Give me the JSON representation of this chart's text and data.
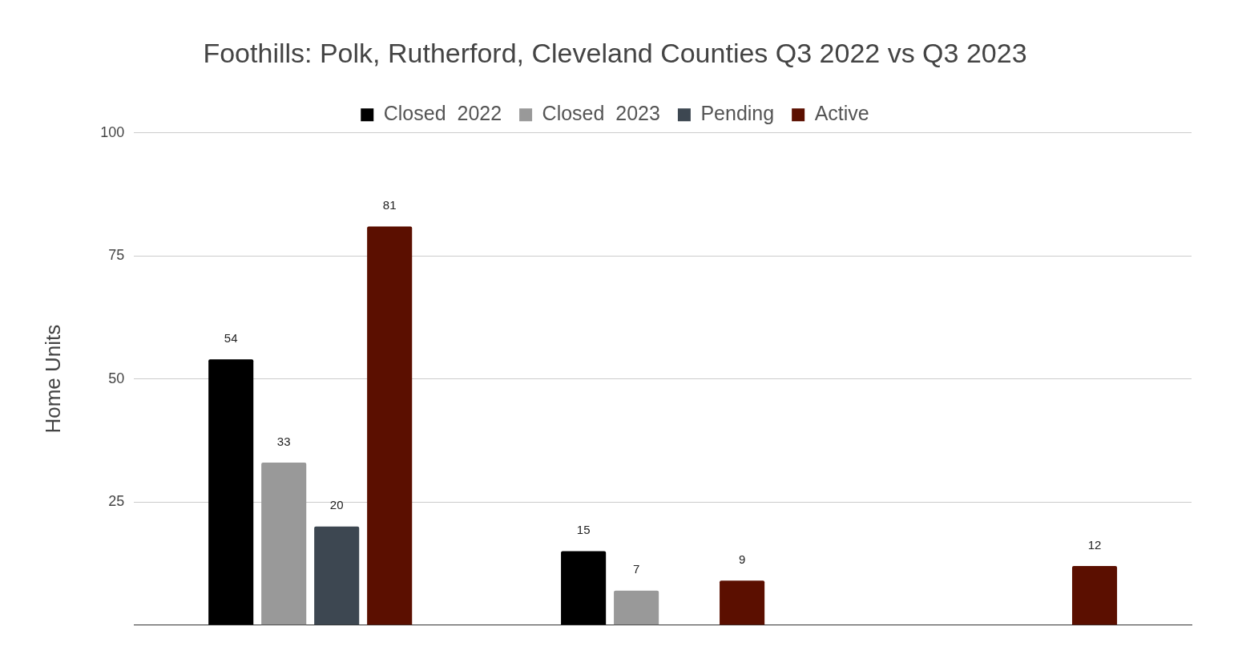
{
  "chart_data": {
    "type": "bar",
    "title": "Foothills: Polk, Rutherford, Cleveland Counties Q3 2022 vs Q3 2023",
    "ylabel": "Home Units",
    "categories": [
      null,
      null,
      null
    ],
    "series": [
      {
        "name": "Closed  2022",
        "color": "#000000",
        "values": [
          54,
          15,
          null
        ]
      },
      {
        "name": "Closed  2023",
        "color": "#999999",
        "values": [
          33,
          7,
          null
        ]
      },
      {
        "name": "Pending",
        "color": "#3d4751",
        "values": [
          20,
          null,
          null
        ]
      },
      {
        "name": "Active",
        "color": "#5b0f00",
        "values": [
          81,
          9,
          12
        ]
      }
    ],
    "ylim": [
      0,
      100
    ],
    "yticks": [
      25,
      50,
      75,
      100
    ],
    "grid": "y",
    "legend": "top",
    "data_labels": true
  }
}
